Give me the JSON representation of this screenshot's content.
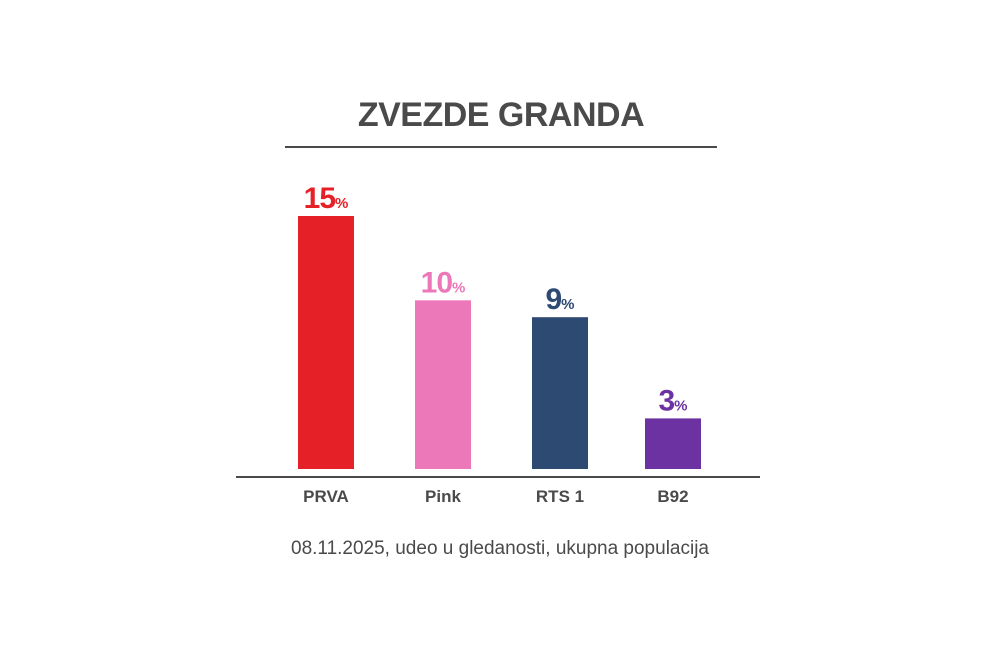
{
  "title": "ZVEZDE GRANDA",
  "note": "08.11.2025, udeo u gledanosti, ukupna populacija",
  "chart_data": {
    "type": "bar",
    "title": "ZVEZDE GRANDA",
    "categories": [
      "PRVA",
      "Pink",
      "RTS 1",
      "B92"
    ],
    "values": [
      15,
      10,
      9,
      3
    ],
    "value_labels": [
      "15",
      "10",
      "9",
      "3"
    ],
    "value_suffix": "%",
    "colors": [
      "#e52027",
      "#ec78b9",
      "#2d4a73",
      "#6d32a1"
    ],
    "axis_color": "#4a4a4a",
    "label_color": "#4a4a4a",
    "xlabel": "",
    "ylabel": "",
    "ylim": [
      0,
      15
    ],
    "grid": false,
    "legend": "none"
  }
}
